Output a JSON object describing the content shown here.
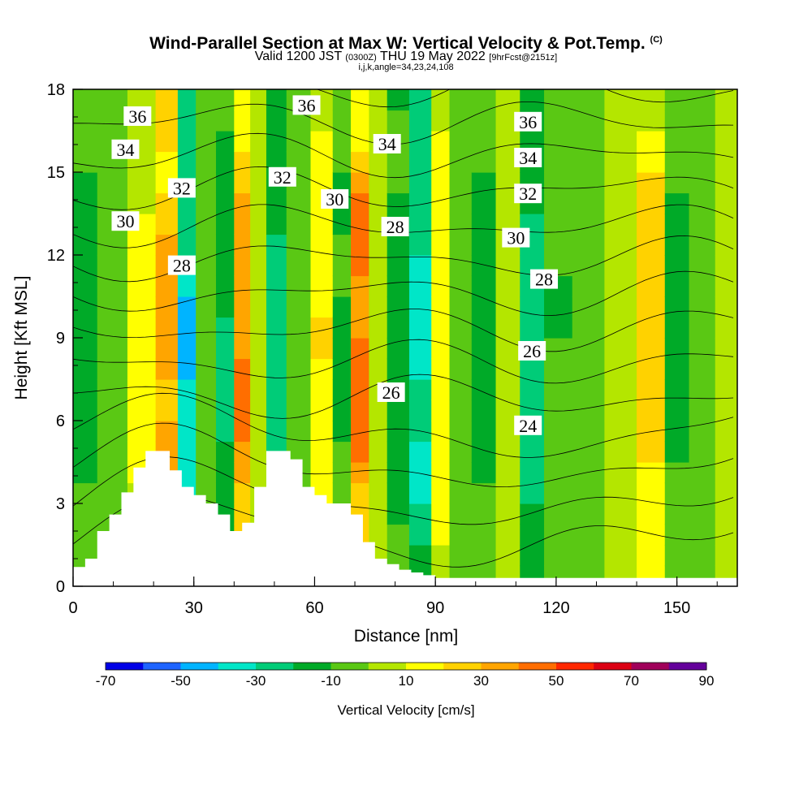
{
  "header": {
    "title_main": "Wind-Parallel Section at Max W: Vertical Velocity & Pot.Temp.",
    "title_mark": "(C)",
    "valid_prefix": "Valid 1200 JST",
    "valid_utc": "(0300Z)",
    "valid_date": "THU 19 May 2022",
    "forecast_note": "[9hrFcst@2151z]",
    "grid_info": "i,j,k,angle=34,23,24,108"
  },
  "chart_data": {
    "type": "heatmap",
    "xlabel": "Distance [nm]",
    "ylabel": "Height [Kft MSL]",
    "xlim": [
      0,
      165
    ],
    "ylim": [
      0,
      18
    ],
    "x_ticks": [
      0,
      30,
      60,
      90,
      120,
      150
    ],
    "y_ticks": [
      0,
      3,
      6,
      9,
      12,
      15,
      18
    ],
    "colorbar": {
      "label": "Vertical Velocity [cm/s]",
      "range": [
        -70,
        90
      ],
      "tick_labels": [
        -70,
        -50,
        -30,
        -10,
        10,
        30,
        50,
        70,
        90
      ],
      "colors": [
        "#0000e6",
        "#1e64ff",
        "#00b4ff",
        "#00e6c8",
        "#00cc78",
        "#00aa28",
        "#5ac814",
        "#b4e600",
        "#ffff00",
        "#ffd200",
        "#ffa500",
        "#ff6e00",
        "#ff2800",
        "#dc0014",
        "#a0005a",
        "#64009b"
      ]
    },
    "vertical_velocity_columns": [
      {
        "x": 2,
        "w": -15
      },
      {
        "x": 10,
        "w": -5
      },
      {
        "x": 17,
        "w": 12
      },
      {
        "x": 24,
        "w": 35
      },
      {
        "x": 28,
        "w": -40
      },
      {
        "x": 33,
        "w": -8
      },
      {
        "x": 38,
        "w": -22
      },
      {
        "x": 42,
        "w": 40
      },
      {
        "x": 46,
        "w": 5
      },
      {
        "x": 50,
        "w": -25
      },
      {
        "x": 56,
        "w": -5
      },
      {
        "x": 62,
        "w": 18
      },
      {
        "x": 67,
        "w": -12
      },
      {
        "x": 71,
        "w": 45
      },
      {
        "x": 76,
        "w": 8
      },
      {
        "x": 80,
        "w": -18
      },
      {
        "x": 87,
        "w": -35
      },
      {
        "x": 91,
        "w": 15
      },
      {
        "x": 96,
        "w": -6
      },
      {
        "x": 102,
        "w": -14
      },
      {
        "x": 108,
        "w": 4
      },
      {
        "x": 114,
        "w": -28
      },
      {
        "x": 120,
        "w": -10
      },
      {
        "x": 128,
        "w": -4
      },
      {
        "x": 136,
        "w": 6
      },
      {
        "x": 144,
        "w": 25
      },
      {
        "x": 150,
        "w": -12
      },
      {
        "x": 156,
        "w": -6
      },
      {
        "x": 163,
        "w": 6
      }
    ],
    "terrain": {
      "x": [
        0,
        3,
        6,
        9,
        12,
        15,
        18,
        21,
        24,
        27,
        30,
        33,
        36,
        39,
        42,
        45,
        48,
        51,
        54,
        57,
        60,
        63,
        66,
        69,
        72,
        75,
        78,
        81,
        84,
        87,
        90,
        93,
        96,
        99,
        165
      ],
      "height": [
        0.7,
        1.0,
        2.0,
        2.6,
        3.4,
        4.3,
        4.9,
        4.9,
        4.2,
        3.6,
        3.3,
        3.0,
        2.6,
        2.0,
        2.3,
        3.6,
        4.9,
        4.9,
        4.6,
        3.6,
        3.3,
        3.0,
        3.0,
        2.6,
        1.6,
        1.0,
        0.8,
        0.6,
        0.5,
        0.4,
        0.3,
        0.3,
        0.3,
        0.3,
        0.3
      ]
    },
    "pot_temp_contours": [
      {
        "value": 24,
        "labels": [
          {
            "x": 113,
            "y": 5.8
          }
        ]
      },
      {
        "value": 26,
        "labels": [
          {
            "x": 79,
            "y": 7.0
          },
          {
            "x": 114,
            "y": 8.5
          }
        ]
      },
      {
        "value": 28,
        "labels": [
          {
            "x": 27,
            "y": 11.6
          },
          {
            "x": 80,
            "y": 13.0
          },
          {
            "x": 117,
            "y": 11.1
          }
        ]
      },
      {
        "value": 30,
        "labels": [
          {
            "x": 13,
            "y": 13.2
          },
          {
            "x": 65,
            "y": 14.0
          },
          {
            "x": 110,
            "y": 12.6
          }
        ]
      },
      {
        "value": 32,
        "labels": [
          {
            "x": 27,
            "y": 14.4
          },
          {
            "x": 52,
            "y": 14.8
          },
          {
            "x": 113,
            "y": 14.2
          }
        ]
      },
      {
        "value": 34,
        "labels": [
          {
            "x": 13,
            "y": 15.8
          },
          {
            "x": 78,
            "y": 16.0
          },
          {
            "x": 113,
            "y": 15.5
          }
        ]
      },
      {
        "value": 36,
        "labels": [
          {
            "x": 16,
            "y": 17.0
          },
          {
            "x": 58,
            "y": 17.4
          },
          {
            "x": 113,
            "y": 16.8
          }
        ]
      }
    ]
  }
}
